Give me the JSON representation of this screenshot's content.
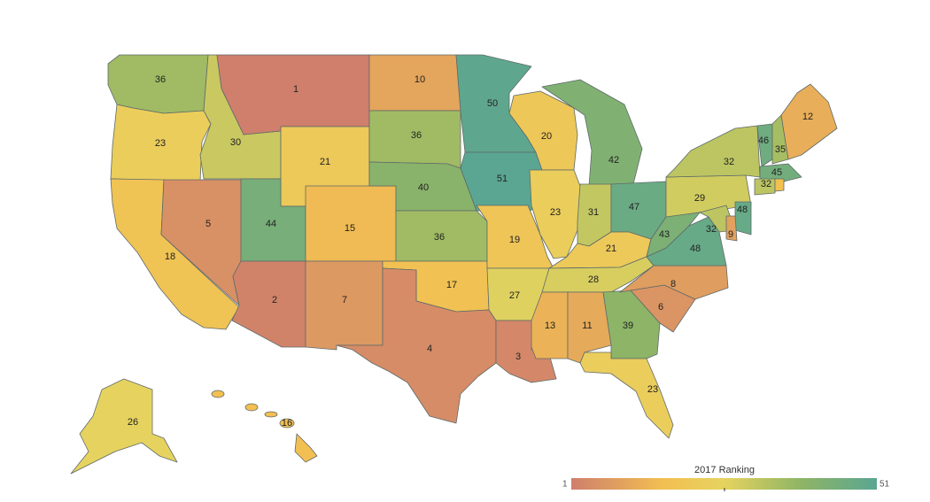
{
  "map": {
    "legend": {
      "title": "2017 Ranking",
      "min_label": "1",
      "max_label": "51",
      "colors": [
        "#cf7f6c",
        "#f2bf52",
        "#e6d35f",
        "#8fb565",
        "#5aa692"
      ]
    },
    "scale": {
      "min": 1,
      "max": 51,
      "stops": [
        [
          0,
          "#cf7f6c"
        ],
        [
          0.3,
          "#f2bf52"
        ],
        [
          0.5,
          "#e6d35f"
        ],
        [
          0.75,
          "#8fb565"
        ],
        [
          1,
          "#5aa692"
        ]
      ]
    },
    "states": [
      {
        "id": "WA",
        "rank": "36"
      },
      {
        "id": "OR",
        "rank": "23"
      },
      {
        "id": "CA",
        "rank": "18"
      },
      {
        "id": "NV",
        "rank": "5"
      },
      {
        "id": "ID",
        "rank": "30"
      },
      {
        "id": "MT",
        "rank": "1"
      },
      {
        "id": "WY",
        "rank": "21"
      },
      {
        "id": "UT",
        "rank": "44"
      },
      {
        "id": "CO",
        "rank": "15"
      },
      {
        "id": "AZ",
        "rank": "2"
      },
      {
        "id": "NM",
        "rank": "7"
      },
      {
        "id": "ND",
        "rank": "10"
      },
      {
        "id": "SD",
        "rank": "36"
      },
      {
        "id": "NE",
        "rank": "40"
      },
      {
        "id": "KS",
        "rank": "36"
      },
      {
        "id": "OK",
        "rank": "17"
      },
      {
        "id": "TX",
        "rank": "4"
      },
      {
        "id": "MN",
        "rank": "50"
      },
      {
        "id": "IA",
        "rank": "51"
      },
      {
        "id": "MO",
        "rank": "19"
      },
      {
        "id": "AR",
        "rank": "27"
      },
      {
        "id": "LA",
        "rank": "3"
      },
      {
        "id": "WI",
        "rank": "20"
      },
      {
        "id": "IL",
        "rank": "23"
      },
      {
        "id": "MI",
        "rank": "42"
      },
      {
        "id": "IN",
        "rank": "31"
      },
      {
        "id": "OH",
        "rank": "47"
      },
      {
        "id": "KY",
        "rank": "21"
      },
      {
        "id": "TN",
        "rank": "28"
      },
      {
        "id": "MS",
        "rank": "13"
      },
      {
        "id": "AL",
        "rank": "11"
      },
      {
        "id": "GA",
        "rank": "39"
      },
      {
        "id": "FL",
        "rank": "23"
      },
      {
        "id": "SC",
        "rank": "6"
      },
      {
        "id": "NC",
        "rank": "8"
      },
      {
        "id": "VA",
        "rank": "48"
      },
      {
        "id": "WV",
        "rank": "43"
      },
      {
        "id": "PA",
        "rank": "29"
      },
      {
        "id": "NY",
        "rank": "32"
      },
      {
        "id": "VT",
        "rank": "46"
      },
      {
        "id": "NH",
        "rank": "35"
      },
      {
        "id": "ME",
        "rank": "12"
      },
      {
        "id": "MA",
        "rank": "45"
      },
      {
        "id": "CT",
        "rank": "32"
      },
      {
        "id": "RI",
        "rank": ""
      },
      {
        "id": "NJ",
        "rank": "48"
      },
      {
        "id": "DE",
        "rank": "9"
      },
      {
        "id": "MD",
        "rank": "32"
      },
      {
        "id": "AK",
        "rank": "26"
      },
      {
        "id": "HI",
        "rank": "16"
      }
    ]
  }
}
